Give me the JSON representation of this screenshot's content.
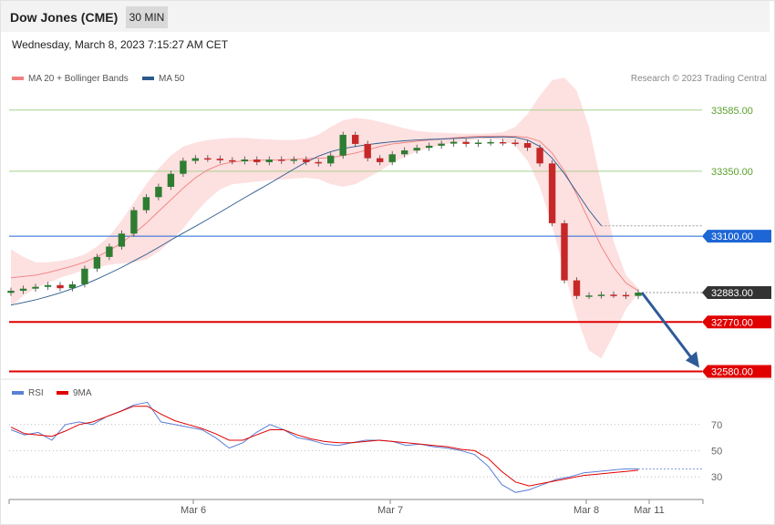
{
  "header": {
    "instrument": "Dow Jones (CME)",
    "timeframe": "30 MIN"
  },
  "datetime": "Wednesday, March 8, 2023 7:15:27 AM CET",
  "credit": "Research © 2023 Trading Central",
  "colors": {
    "ma20": "#f08080",
    "ma50": "#2c5a8c",
    "bands": "#fde0e0",
    "up": "#2e7d32",
    "down": "#c62828",
    "pivot": "#a8d08d",
    "resistance": "#1e66d6",
    "support": "#e00000",
    "last": "#333333",
    "rsi": "#5b7fd6",
    "rsi_ma": "#e00000",
    "arrow": "#2f5a9a"
  },
  "legend": {
    "main": [
      {
        "label": "MA 20 + Bollinger Bands",
        "color": "#f08080"
      },
      {
        "label": "MA 50",
        "color": "#2c5a8c"
      }
    ],
    "rsi": [
      {
        "label": "RSI",
        "color": "#5b7fd6"
      },
      {
        "label": "9MA",
        "color": "#e00000"
      }
    ]
  },
  "chart_data": [
    {
      "type": "line",
      "title": "",
      "x_ticks": [
        "Mar 6",
        "Mar 7",
        "Mar 8",
        "Mar 11"
      ],
      "ylim": [
        32550,
        33700
      ],
      "levels": [
        {
          "label": "33585.00",
          "value": 33585,
          "kind": "pivot"
        },
        {
          "label": "33350.00",
          "value": 33350,
          "kind": "pivot"
        },
        {
          "label": "33100.00",
          "value": 33100,
          "kind": "resistance"
        },
        {
          "label": "32883.00",
          "value": 32883,
          "kind": "last"
        },
        {
          "label": "32770.00",
          "value": 32770,
          "kind": "support"
        },
        {
          "label": "32580.00",
          "value": 32580,
          "kind": "support"
        }
      ],
      "series": [
        {
          "name": "MA 20",
          "values": [
            32940,
            32945,
            32950,
            32960,
            32972,
            32985,
            33000,
            33020,
            33045,
            33075,
            33110,
            33150,
            33195,
            33240,
            33285,
            33325,
            33355,
            33375,
            33385,
            33390,
            33392,
            33393,
            33394,
            33396,
            33398,
            33400,
            33402,
            33410,
            33420,
            33432,
            33445,
            33455,
            33460,
            33465,
            33470,
            33474,
            33478,
            33482,
            33484,
            33485,
            33485,
            33484,
            33480,
            33465,
            33420,
            33350,
            33260,
            33160,
            33060,
            32980,
            32920,
            32890
          ]
        },
        {
          "name": "MA 50",
          "values": [
            32835,
            32845,
            32855,
            32868,
            32882,
            32898,
            32915,
            32935,
            32957,
            32980,
            33005,
            33030,
            33057,
            33085,
            33112,
            33138,
            33165,
            33192,
            33220,
            33248,
            33275,
            33302,
            33330,
            33358,
            33385,
            33408,
            33425,
            33437,
            33445,
            33452,
            33458,
            33463,
            33467,
            33470,
            33472,
            33474,
            33476,
            33478,
            33480,
            33481,
            33482,
            33480,
            33470,
            33445,
            33400,
            33340,
            33270,
            33200,
            33140
          ]
        },
        {
          "name": "Bollinger Upper",
          "values": [
            33050,
            33020,
            33000,
            33000,
            33005,
            33015,
            33030,
            33060,
            33100,
            33160,
            33230,
            33300,
            33360,
            33410,
            33445,
            33460,
            33470,
            33475,
            33478,
            33478,
            33475,
            33472,
            33470,
            33470,
            33475,
            33490,
            33520,
            33545,
            33555,
            33550,
            33540,
            33528,
            33515,
            33505,
            33500,
            33498,
            33496,
            33494,
            33494,
            33496,
            33500,
            33520,
            33570,
            33640,
            33700,
            33710,
            33660,
            33520,
            33300,
            33080,
            32950,
            32900
          ]
        },
        {
          "name": "Bollinger Lower",
          "values": [
            32830,
            32870,
            32900,
            32920,
            32940,
            32955,
            32970,
            32980,
            32990,
            32995,
            33000,
            33010,
            33040,
            33080,
            33130,
            33190,
            33240,
            33280,
            33300,
            33305,
            33310,
            33315,
            33318,
            33322,
            33325,
            33320,
            33300,
            33290,
            33300,
            33325,
            33350,
            33382,
            33405,
            33425,
            33440,
            33450,
            33460,
            33468,
            33474,
            33474,
            33470,
            33448,
            33390,
            33290,
            33140,
            32960,
            32790,
            32660,
            32630,
            32720,
            32820,
            32880
          ]
        },
        {
          "name": "Close",
          "values": [
            32890,
            32898,
            32905,
            32912,
            32900,
            32915,
            32975,
            33020,
            33060,
            33110,
            33200,
            33250,
            33290,
            33340,
            33390,
            33400,
            33398,
            33392,
            33388,
            33395,
            33385,
            33395,
            33390,
            33395,
            33385,
            33380,
            33410,
            33490,
            33455,
            33400,
            33385,
            33415,
            33430,
            33440,
            33448,
            33456,
            33463,
            33455,
            33460,
            33462,
            33460,
            33458,
            33440,
            33380,
            33150,
            32930,
            32870,
            32872,
            32875,
            32874,
            32870,
            32883
          ]
        }
      ]
    },
    {
      "type": "line",
      "title": "",
      "ylim": [
        14,
        88
      ],
      "y_ticks": [
        70,
        50,
        30
      ],
      "series": [
        {
          "name": "RSI",
          "values": [
            66,
            62,
            64,
            58,
            70,
            72,
            70,
            76,
            80,
            85,
            87,
            72,
            70,
            68,
            66,
            60,
            52,
            56,
            64,
            70,
            66,
            60,
            58,
            55,
            54,
            56,
            58,
            58,
            57,
            54,
            55,
            53,
            52,
            50,
            47,
            38,
            24,
            18,
            20,
            24,
            28,
            30,
            33,
            34,
            35,
            36,
            36
          ]
        },
        {
          "name": "9MA",
          "values": [
            68,
            63,
            62,
            61,
            65,
            70,
            72,
            76,
            80,
            84,
            84,
            78,
            73,
            70,
            67,
            63,
            58,
            58,
            62,
            66,
            66,
            62,
            59,
            57,
            56,
            56,
            57,
            58,
            57,
            56,
            55,
            54,
            53,
            51,
            50,
            44,
            34,
            26,
            23,
            25,
            27,
            29,
            31,
            32,
            33,
            34,
            35
          ]
        }
      ]
    }
  ]
}
